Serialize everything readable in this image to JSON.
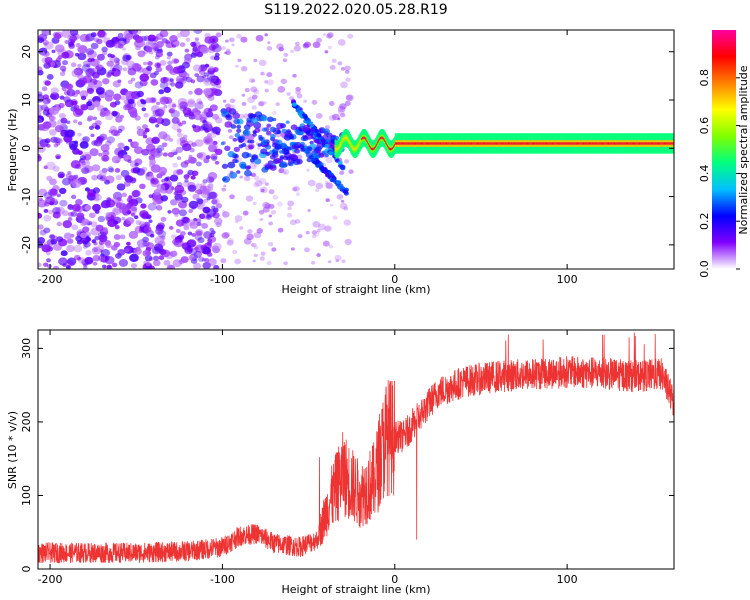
{
  "title": "S119.2022.020.05.28.R19",
  "chart_data": [
    {
      "type": "heatmap",
      "xlabel": "Height of straight line (km)",
      "ylabel": "Frequency (Hz)",
      "xlim": [
        -207,
        162
      ],
      "ylim": [
        -25,
        24.5
      ],
      "xticks": [
        -200,
        -100,
        0,
        100
      ],
      "yticks": [
        -20,
        -10,
        0,
        10,
        20
      ],
      "grid": false,
      "colorbar": {
        "label": "Normalized spectral amplitude",
        "range": [
          0,
          1
        ],
        "ticks": [
          "0.0",
          "0.2",
          "0.4",
          "0.6",
          "0.8"
        ],
        "colormap": [
          "#ffffff",
          "#8000ff",
          "#0000ff",
          "#00c0ff",
          "#00ff80",
          "#80ff00",
          "#ffff00",
          "#ff8000",
          "#ff0000",
          "#ff00a0"
        ]
      },
      "regions": [
        {
          "x_range": [
            -207,
            -102
          ],
          "description_level": 0.15,
          "freq_range": [
            -25,
            24.5
          ]
        },
        {
          "x_range": [
            -100,
            -30
          ],
          "description_level": 0.3,
          "freq_range": [
            -12,
            12
          ]
        },
        {
          "x_range": [
            -30,
            162
          ],
          "description_level": 0.9,
          "freq_center": 1,
          "freq_halfwidth": 1.5
        }
      ]
    },
    {
      "type": "line",
      "xlabel": "Height of straight line (km)",
      "ylabel": "SNR (10 * v/v)",
      "xlim": [
        -207,
        162
      ],
      "ylim": [
        0,
        325
      ],
      "xticks": [
        -200,
        -100,
        0,
        100
      ],
      "yticks": [
        0,
        100,
        200,
        300
      ],
      "grid": false,
      "color": "#ee3333",
      "trend": [
        {
          "x": -207,
          "y": 22
        },
        {
          "x": -180,
          "y": 22
        },
        {
          "x": -150,
          "y": 22
        },
        {
          "x": -120,
          "y": 24
        },
        {
          "x": -100,
          "y": 30
        },
        {
          "x": -90,
          "y": 45
        },
        {
          "x": -80,
          "y": 48
        },
        {
          "x": -70,
          "y": 35
        },
        {
          "x": -55,
          "y": 30
        },
        {
          "x": -45,
          "y": 40
        },
        {
          "x": -38,
          "y": 90
        },
        {
          "x": -30,
          "y": 130
        },
        {
          "x": -20,
          "y": 100
        },
        {
          "x": -12,
          "y": 120
        },
        {
          "x": -5,
          "y": 180
        },
        {
          "x": 5,
          "y": 180
        },
        {
          "x": 15,
          "y": 210
        },
        {
          "x": 25,
          "y": 240
        },
        {
          "x": 40,
          "y": 255
        },
        {
          "x": 60,
          "y": 262
        },
        {
          "x": 80,
          "y": 265
        },
        {
          "x": 100,
          "y": 268
        },
        {
          "x": 120,
          "y": 266
        },
        {
          "x": 140,
          "y": 262
        },
        {
          "x": 155,
          "y": 265
        },
        {
          "x": 162,
          "y": 225
        }
      ]
    }
  ]
}
